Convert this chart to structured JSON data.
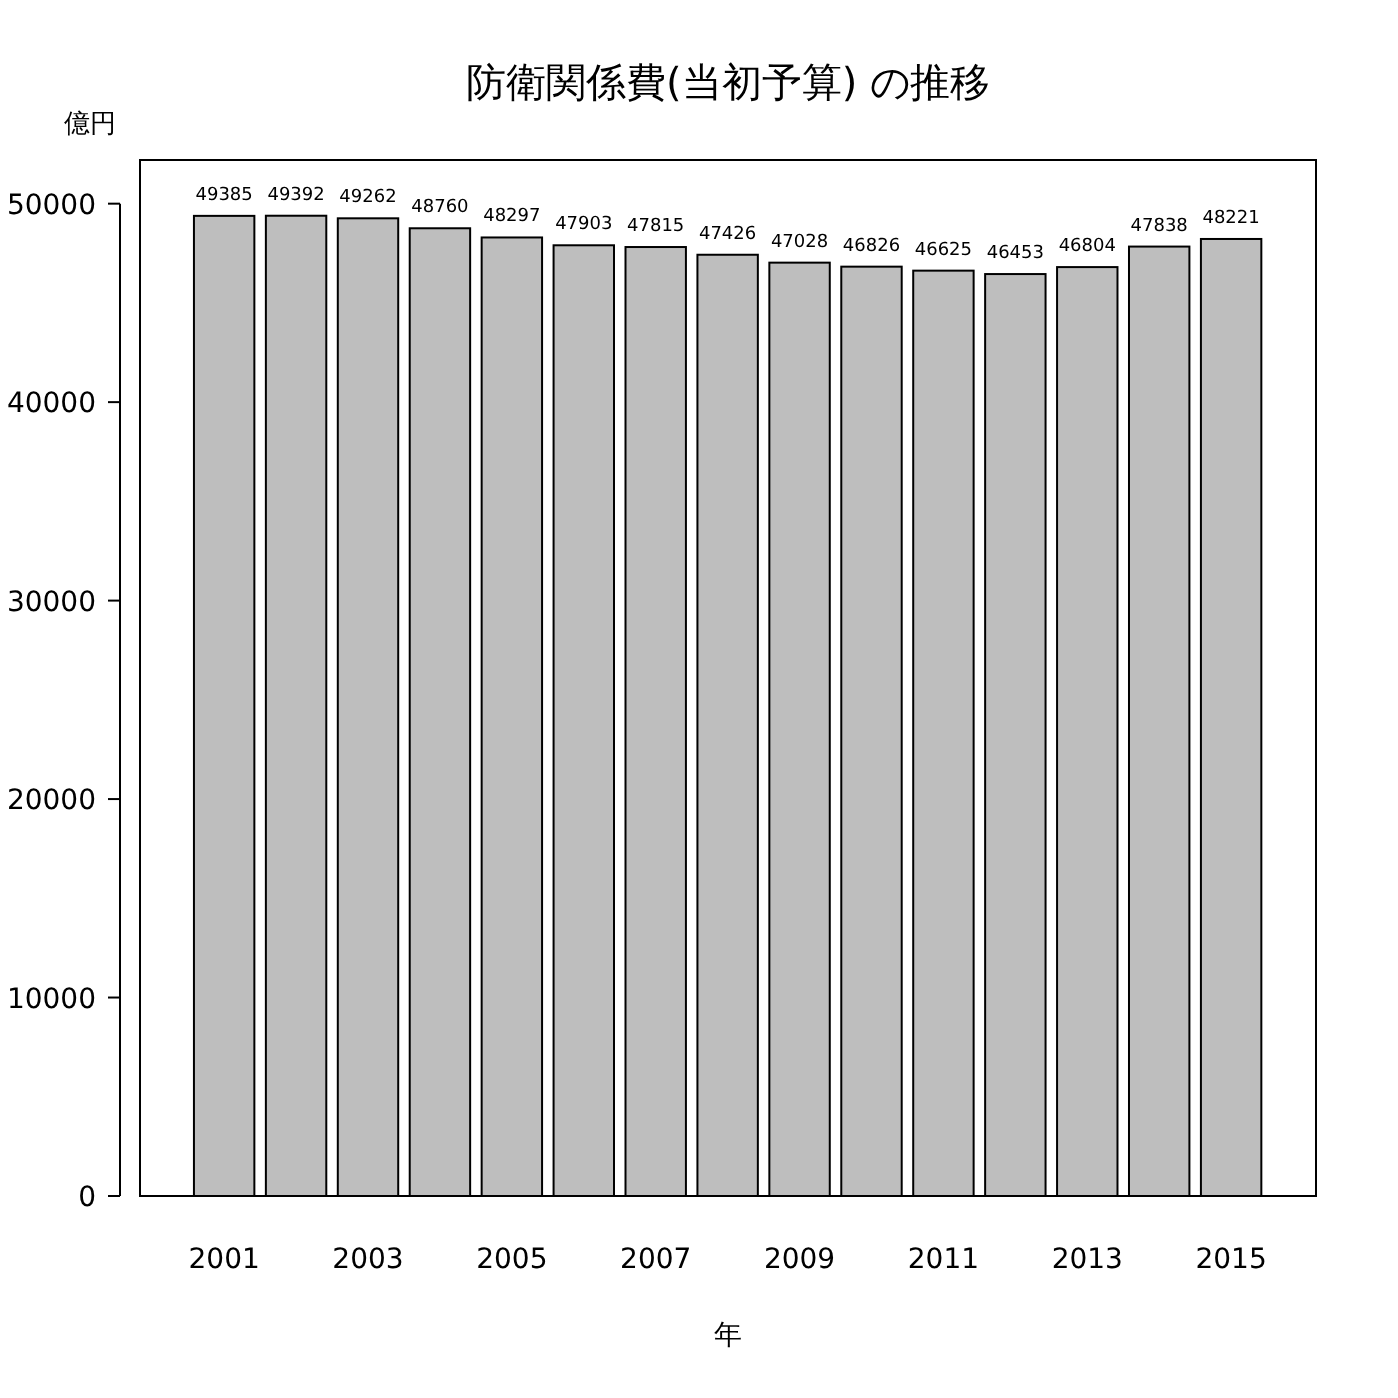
{
  "chart_data": {
    "type": "bar",
    "title": "防衛関係費(当初予算) の推移",
    "xlabel": "年",
    "ylabel": "億円",
    "categories": [
      "2001",
      null,
      "2003",
      null,
      "2005",
      null,
      "2007",
      null,
      "2009",
      null,
      "2011",
      null,
      "2013",
      null,
      "2015"
    ],
    "values": [
      49385,
      49392,
      49262,
      48760,
      48297,
      47903,
      47815,
      47426,
      47028,
      46826,
      46625,
      46453,
      46804,
      47838,
      48221
    ],
    "color": "#bebebe",
    "data_labels": true,
    "ylim": [
      0,
      52200
    ],
    "yticks": [
      0,
      10000,
      20000,
      30000,
      40000,
      50000
    ],
    "grid": false
  }
}
